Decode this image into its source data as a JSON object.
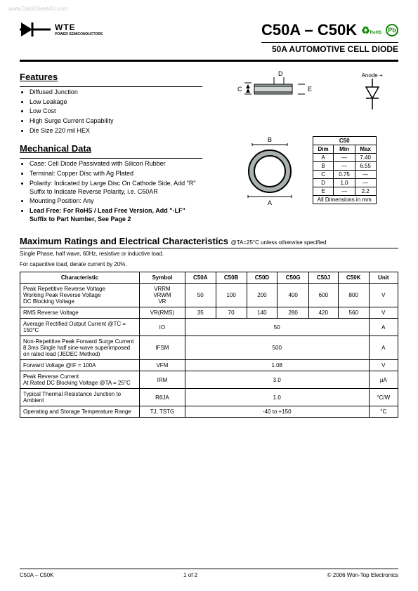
{
  "watermark": "www.DataSheet4U.com",
  "logo": {
    "brand": "WTE",
    "sub": "POWER SEMICONDUCTORS"
  },
  "title": "C50A – C50K",
  "rohs_label": "RoHS",
  "pb_label": "Pb",
  "subtitle": "50A  AUTOMOTIVE  CELL  DIODE",
  "features": {
    "heading": "Features",
    "items": [
      "Diffused Junction",
      "Low Leakage",
      "Low Cost",
      "High Surge Current Capability",
      "Die Size 220 mil HEX"
    ]
  },
  "anode_label": "Anode +",
  "diagram_labels": {
    "C": "C",
    "D": "D",
    "E": "E",
    "A": "A",
    "B": "B"
  },
  "mechanical": {
    "heading": "Mechanical Data",
    "items": [
      "Case: Cell Diode Passivated with Silicon Rubber",
      "Terminal: Copper Disc with Ag Plated",
      "Polarity: Indicated by Large Disc On Cathode Side, Add \"R\" Suffix to Indicate Reverse Polarity, i.e. C50AR",
      "Mounting Position: Any",
      "Lead Free: For RoHS / Lead Free Version, Add \"-LF\" Suffix to Part Number, See Page 2"
    ]
  },
  "dim_table": {
    "title": "C50",
    "headers": [
      "Dim",
      "Min",
      "Max"
    ],
    "rows": [
      [
        "A",
        "—",
        "7.40"
      ],
      [
        "B",
        "—",
        "6.55"
      ],
      [
        "C",
        "0.75",
        "—"
      ],
      [
        "D",
        "1.0",
        "—"
      ],
      [
        "E",
        "—",
        "2.2"
      ]
    ],
    "footer": "All Dimensions in mm"
  },
  "maxr": {
    "heading": "Maximum Ratings and Electrical Characteristics",
    "cond": "@TA=25°C unless otherwise specified",
    "note1": "Single Phase, half wave, 60Hz, resistive or inductive load.",
    "note2": "For capacitive load, derate current by 20%."
  },
  "char_table": {
    "headers": [
      "Characteristic",
      "Symbol",
      "C50A",
      "C50B",
      "C50D",
      "C50G",
      "C50J",
      "C50K",
      "Unit"
    ],
    "rows": [
      {
        "char": "Peak Repetitive Reverse Voltage\nWorking Peak Reverse Voltage\nDC Blocking Voltage",
        "symbol": "VRRM\nVRWM\nVR",
        "vals": [
          "50",
          "100",
          "200",
          "400",
          "600",
          "800"
        ],
        "unit": "V"
      },
      {
        "char": "RMS Reverse Voltage",
        "symbol": "VR(RMS)",
        "vals": [
          "35",
          "70",
          "140",
          "280",
          "420",
          "560"
        ],
        "unit": "V"
      },
      {
        "char": "Average Rectified Output Current        @TC = 150°C",
        "symbol": "IO",
        "span": "50",
        "unit": "A"
      },
      {
        "char": "Non-Repetitive Peak Forward Surge Current\n8.3ms Single half sine-wave superimposed on rated load (JEDEC Method)",
        "symbol": "IFSM",
        "span": "500",
        "unit": "A"
      },
      {
        "char": "Forward Voltage                                  @IF = 100A",
        "symbol": "VFM",
        "span": "1.08",
        "unit": "V"
      },
      {
        "char": "Peak Reverse Current\nAt Rated DC Blocking Voltage        @TA = 25°C",
        "symbol": "IRM",
        "span": "3.0",
        "unit": "µA"
      },
      {
        "char": "Typical Thermal Resistance Junction to Ambient",
        "symbol": "RθJA",
        "span": "1.0",
        "unit": "°C/W"
      },
      {
        "char": "Operating and Storage Temperature Range",
        "symbol": "TJ, TSTG",
        "span": "-40 to +150",
        "unit": "°C"
      }
    ]
  },
  "footer": {
    "left": "C50A – C50K",
    "center": "1 of 2",
    "right": "© 2006 Won-Top Electronics"
  }
}
